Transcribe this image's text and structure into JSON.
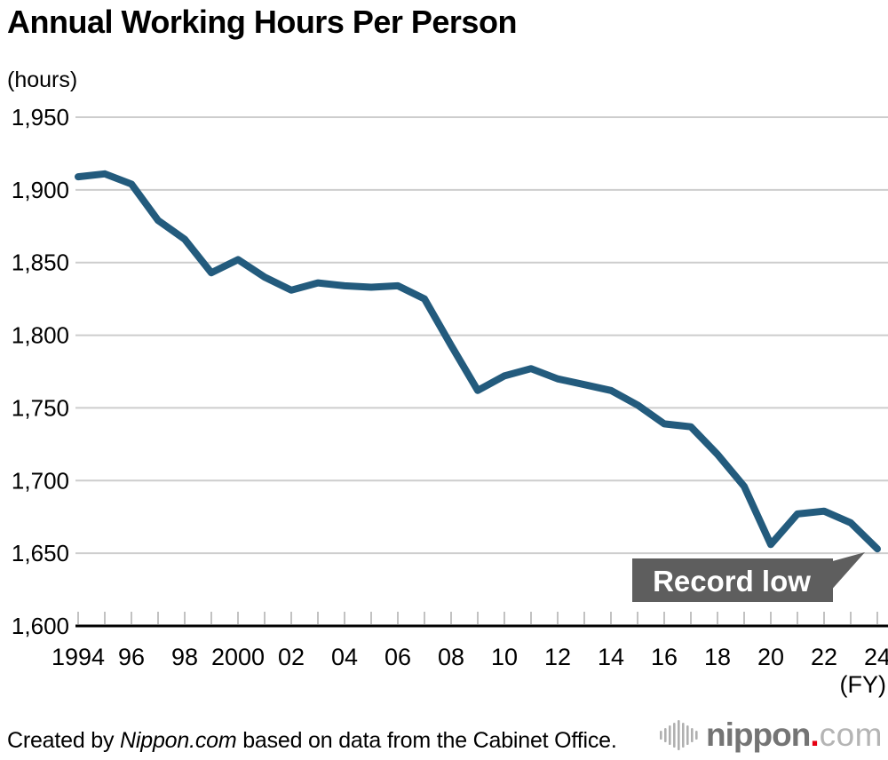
{
  "header": {
    "title": "Annual Working Hours Per Person",
    "unit_label": "(hours)"
  },
  "footer": {
    "credit_prefix": "Created by ",
    "credit_source": "Nippon.com",
    "credit_suffix": " based on data from the Cabinet Office.",
    "logo": {
      "name": "nippon",
      "dot": ".",
      "tld": "com"
    }
  },
  "chart_data": {
    "type": "line",
    "title": "Annual Working Hours Per Person",
    "unit": "hours",
    "x_axis_label": "(FY)",
    "y_axis_label": "(hours)",
    "x": [
      1994,
      1995,
      1996,
      1997,
      1998,
      1999,
      2000,
      2001,
      2002,
      2003,
      2004,
      2005,
      2006,
      2007,
      2008,
      2009,
      2010,
      2011,
      2012,
      2013,
      2014,
      2015,
      2016,
      2017,
      2018,
      2019,
      2020,
      2021,
      2022,
      2023,
      2024
    ],
    "values": [
      1909,
      1911,
      1904,
      1879,
      1866,
      1843,
      1852,
      1840,
      1831,
      1836,
      1834,
      1833,
      1834,
      1825,
      1793,
      1762,
      1772,
      1777,
      1770,
      1766,
      1762,
      1752,
      1739,
      1737,
      1718,
      1696,
      1656,
      1677,
      1679,
      1671,
      1653
    ],
    "ylim": [
      1600,
      1950
    ],
    "y_ticks": [
      1950,
      1900,
      1850,
      1800,
      1750,
      1700,
      1650,
      1600
    ],
    "y_tick_labels": [
      "1,950",
      "1,900",
      "1,850",
      "1,800",
      "1,750",
      "1,700",
      "1,650",
      "1,600"
    ],
    "x_tick_years": [
      1994,
      1996,
      1998,
      2000,
      2002,
      2004,
      2006,
      2008,
      2010,
      2012,
      2014,
      2016,
      2018,
      2020,
      2022,
      2024
    ],
    "x_tick_labels": [
      "1994",
      "96",
      "98",
      "2000",
      "02",
      "04",
      "06",
      "08",
      "10",
      "12",
      "14",
      "16",
      "18",
      "20",
      "22",
      "24"
    ],
    "grid": true,
    "legend": "none",
    "line_color": "#235b7d",
    "grid_color": "#cdcdcd",
    "axis_color": "#000000",
    "tick_color": "#c2c2c2",
    "label_color": "#000000",
    "annotation": {
      "text": "Record low",
      "target_year": 2024,
      "target_value": 1653,
      "bg_color": "#5e5e5e",
      "text_color": "#ffffff"
    }
  }
}
